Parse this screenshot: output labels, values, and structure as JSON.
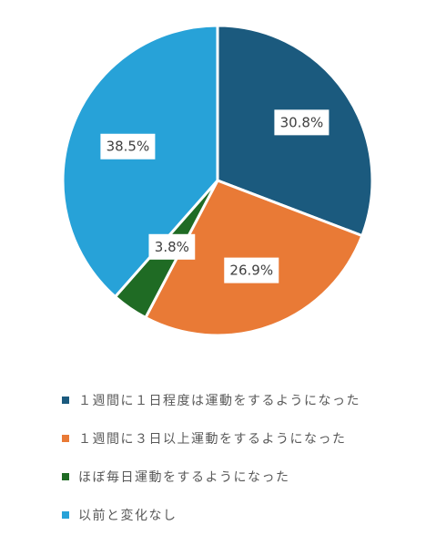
{
  "chart_data": {
    "type": "pie",
    "categories": [
      "１週間に１日程度は運動をするようになった",
      "１週間に３日以上運動をするようになった",
      "ほぼ毎日運動をするようになった",
      "以前と変化なし"
    ],
    "values": [
      30.8,
      26.9,
      3.8,
      38.5
    ],
    "data_labels": [
      "30.8%",
      "26.9%",
      "3.8%",
      "38.5%"
    ],
    "colors": [
      "#1b5a7e",
      "#e97a36",
      "#1f6b24",
      "#27a2d8"
    ],
    "start_angle_deg": 0,
    "direction": "clockwise",
    "legend_position": "bottom"
  }
}
